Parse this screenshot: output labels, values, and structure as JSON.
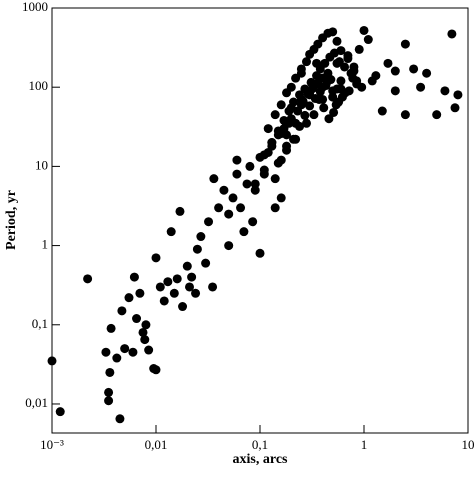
{
  "chart_data": {
    "type": "scatter",
    "xlabel": "axis, arcs",
    "ylabel": "Period, yr",
    "xscale": "log",
    "yscale": "log",
    "color": "#000000",
    "xlim": [
      0.001,
      10
    ],
    "ylim": [
      0.0043,
      1000
    ],
    "xticks": [
      {
        "value": 0.001,
        "label": "10⁻³"
      },
      {
        "value": 0.01,
        "label": "0,01"
      },
      {
        "value": 0.1,
        "label": "0,1"
      },
      1,
      10
    ],
    "yticks": [
      {
        "value": 0.01,
        "label": "0,01"
      },
      {
        "value": 0.1,
        "label": "0,1"
      },
      1,
      10,
      100,
      1000
    ],
    "x": [
      0.0012,
      0.001,
      0.0022,
      0.0033,
      0.0035,
      0.0035,
      0.0036,
      0.0037,
      0.0042,
      0.0045,
      0.0047,
      0.005,
      0.0055,
      0.006,
      0.0062,
      0.0065,
      0.007,
      0.0075,
      0.0078,
      0.008,
      0.0085,
      0.0095,
      0.01,
      0.01,
      0.011,
      0.012,
      0.013,
      0.014,
      0.015,
      0.016,
      0.017,
      0.018,
      0.02,
      0.021,
      0.022,
      0.024,
      0.025,
      0.027,
      0.03,
      0.032,
      0.035,
      0.036,
      0.04,
      0.045,
      0.05,
      0.05,
      0.055,
      0.06,
      0.06,
      0.065,
      0.07,
      0.075,
      0.08,
      0.085,
      0.09,
      0.1,
      0.1,
      0.11,
      0.12,
      0.13,
      0.14,
      0.15,
      0.16,
      0.17,
      0.18,
      0.2,
      0.22,
      0.25,
      0.28,
      0.3,
      0.33,
      0.36,
      0.4,
      0.45,
      0.5,
      0.55,
      0.6,
      0.7,
      0.8,
      0.9,
      1.0,
      1.1,
      0.12,
      0.14,
      0.16,
      0.18,
      0.2,
      0.22,
      0.25,
      0.28,
      0.3,
      0.33,
      0.36,
      0.4,
      0.45,
      0.5,
      0.55,
      0.6,
      0.7,
      0.8,
      0.11,
      0.13,
      0.15,
      0.17,
      0.19,
      0.21,
      0.24,
      0.27,
      0.31,
      0.35,
      0.38,
      0.42,
      0.47,
      0.52,
      0.58,
      0.65,
      0.75,
      0.85,
      0.95,
      0.15,
      0.18,
      0.21,
      0.24,
      0.27,
      0.3,
      0.34,
      0.38,
      0.43,
      0.48,
      0.54,
      0.62,
      0.72,
      0.85,
      0.09,
      0.11,
      0.13,
      0.16,
      0.19,
      0.23,
      0.26,
      0.29,
      0.32,
      0.37,
      0.41,
      0.46,
      0.51,
      0.57,
      0.66,
      0.78,
      0.2,
      0.25,
      0.3,
      0.35,
      0.4,
      0.5,
      0.6,
      0.3,
      0.4,
      0.25,
      0.35,
      0.45,
      0.55,
      0.18,
      0.22,
      1.2,
      1.5,
      2,
      2,
      2.5,
      2.5,
      3,
      3.5,
      4,
      5,
      6,
      7,
      7.5,
      8,
      1.3,
      1.7,
      0.16,
      0.14
    ],
    "y": [
      0.008,
      0.035,
      0.38,
      0.045,
      0.011,
      0.014,
      0.025,
      0.09,
      0.038,
      0.0065,
      0.15,
      0.05,
      0.22,
      0.045,
      0.4,
      0.12,
      0.25,
      0.08,
      0.065,
      0.1,
      0.048,
      0.028,
      0.027,
      0.7,
      0.3,
      0.2,
      0.35,
      1.5,
      0.25,
      0.38,
      2.7,
      0.17,
      0.55,
      0.3,
      0.4,
      0.25,
      0.9,
      1.3,
      0.6,
      2,
      0.3,
      7,
      3,
      5,
      2.5,
      1,
      4,
      8,
      12,
      3,
      1.5,
      6,
      10,
      2,
      5,
      13,
      0.8,
      9,
      15,
      20,
      7,
      25,
      12,
      30,
      18,
      40,
      22,
      60,
      35,
      80,
      45,
      110,
      70,
      150,
      90,
      200,
      120,
      250,
      180,
      300,
      520,
      400,
      30,
      45,
      60,
      85,
      100,
      130,
      170,
      210,
      260,
      300,
      350,
      420,
      480,
      500,
      380,
      290,
      230,
      160,
      14,
      20,
      28,
      38,
      50,
      65,
      80,
      95,
      115,
      140,
      170,
      200,
      240,
      270,
      210,
      180,
      150,
      120,
      100,
      11,
      16,
      22,
      32,
      44,
      58,
      72,
      88,
      105,
      125,
      60,
      75,
      90,
      110,
      6,
      8,
      18,
      26,
      35,
      50,
      66,
      82,
      96,
      70,
      55,
      40,
      48,
      65,
      85,
      130,
      55,
      70,
      90,
      110,
      130,
      75,
      95,
      85,
      100,
      150,
      200,
      120,
      95,
      25,
      35,
      120,
      50,
      90,
      160,
      45,
      350,
      170,
      100,
      150,
      45,
      90,
      470,
      55,
      80,
      140,
      200,
      4,
      3
    ]
  }
}
